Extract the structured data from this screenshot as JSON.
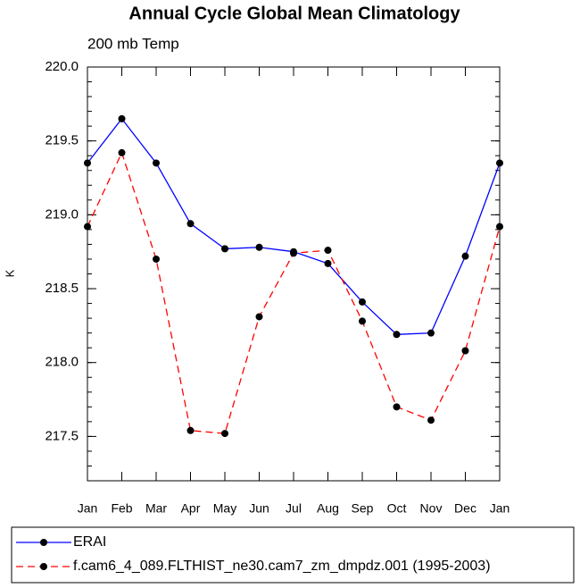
{
  "chart_data": {
    "type": "line",
    "title": "Annual Cycle Global Mean Climatology",
    "subtitle": "200 mb Temp",
    "ylabel": "K",
    "categories": [
      "Jan",
      "Feb",
      "Mar",
      "Apr",
      "May",
      "Jun",
      "Jul",
      "Aug",
      "Sep",
      "Oct",
      "Nov",
      "Dec",
      "Jan"
    ],
    "series": [
      {
        "name": "ERAI",
        "color": "#0000ff",
        "linestyle": "solid",
        "values": [
          219.35,
          219.65,
          219.35,
          218.94,
          218.77,
          218.78,
          218.75,
          218.67,
          218.41,
          218.19,
          218.2,
          218.72,
          219.35
        ]
      },
      {
        "name": "f.cam6_4_089.FLTHIST_ne30.cam7_zm_dmpdz.001 (1995-2003)",
        "color": "#ff0000",
        "linestyle": "dashed",
        "values": [
          218.92,
          219.42,
          218.7,
          217.54,
          217.52,
          218.31,
          218.74,
          218.76,
          218.28,
          217.7,
          217.61,
          218.08,
          218.92
        ]
      }
    ],
    "ylim": [
      217.2,
      220.0
    ],
    "yticks": [
      {
        "value": 217.5,
        "label": "217.5"
      },
      {
        "value": 218,
        "label": "218.0"
      },
      {
        "value": 218.5,
        "label": "218.5"
      },
      {
        "value": 219,
        "label": "219.0"
      },
      {
        "value": 219.5,
        "label": "219.5"
      },
      {
        "value": 220,
        "label": "220.0"
      }
    ],
    "marker_color": "#000000"
  }
}
